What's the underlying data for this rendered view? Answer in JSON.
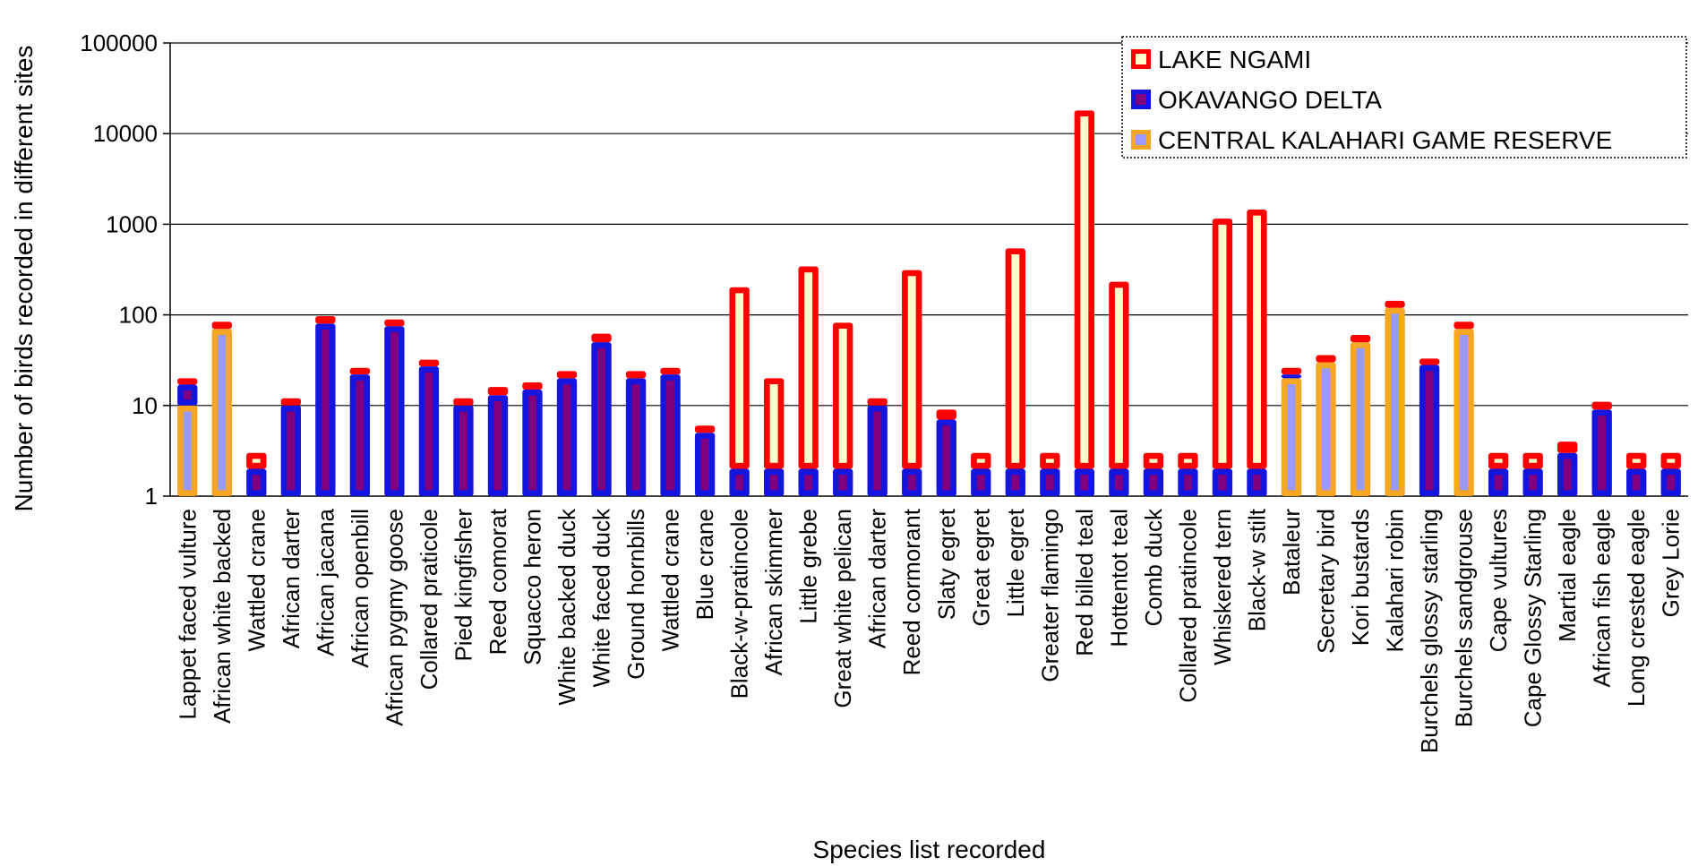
{
  "chart_data": {
    "type": "bar",
    "stacked": true,
    "log_scale": true,
    "ylim": [
      1,
      100000
    ],
    "y_ticks": [
      "1",
      "10",
      "100",
      "1000",
      "10000",
      "100000"
    ],
    "ylabel": "Number of birds recorded in different sites",
    "xlabel": "Species list recorded",
    "grid": true,
    "legend_position": "top-right",
    "categories": [
      "Lappet faced vulture",
      "African white backed",
      "Wattled crane",
      "African darter",
      "African jacana",
      "African openbill",
      "African pygmy goose",
      "Collared praticole",
      "Pied kingfisher",
      "Reed comorat",
      "Squacco heron",
      "White backed duck",
      "White faced duck",
      "Ground hornbills",
      "Wattled crane",
      "Blue crane",
      "Black-w-pratincole",
      "African skimmer",
      "Little grebe",
      "Great white pelican",
      "African darter",
      "Reed cormorant",
      "Slaty egret",
      "Great egret",
      "Little egret",
      "Greater flamingo",
      "Red billed teal",
      "Hottentot teal",
      "Comb duck",
      "Collared pratincole",
      "Whiskered tern",
      "Black-w stilt",
      "Bataleur",
      "Secretary bird",
      "Kori bustards",
      "Kalahari robin",
      "Burchels glossy starling",
      "Burchels sandgrouse",
      "Cape vultures",
      "Cape Glossy Starling",
      "Martial eagle",
      "African fish eagle",
      "Long crested eagle",
      "Grey Lorie"
    ],
    "series": [
      {
        "name": "CENTRAL KALAHARI GAME RESERVE",
        "color": "#f5a623",
        "values": [
          10,
          70,
          0,
          0,
          0,
          0,
          0,
          0,
          0,
          0,
          0,
          0,
          0,
          0,
          0,
          0,
          0,
          0,
          0,
          0,
          0,
          0,
          0,
          0,
          0,
          0,
          0,
          0,
          0,
          0,
          0,
          0,
          20,
          30,
          50,
          120,
          0,
          70,
          0,
          0,
          0,
          0,
          0,
          0
        ]
      },
      {
        "name": "OKAVANGO DELTA",
        "color": "#1515e0",
        "values": [
          7,
          0,
          2,
          10,
          80,
          22,
          75,
          27,
          10,
          13,
          15,
          20,
          50,
          20,
          22,
          5,
          2,
          2,
          2,
          2,
          10,
          2,
          7,
          2,
          2,
          2,
          2,
          2,
          2,
          2,
          2,
          2,
          2,
          0,
          0,
          0,
          28,
          0,
          2,
          2,
          3,
          9,
          2,
          2
        ]
      },
      {
        "name": "LAKE NGAMI",
        "color": "#ff0000",
        "values": [
          3,
          14,
          1,
          2,
          17,
          4,
          14,
          5,
          2,
          3,
          3,
          4,
          12,
          4,
          4,
          1,
          200,
          18,
          340,
          80,
          2,
          310,
          2,
          1,
          540,
          1,
          18000,
          230,
          1,
          1,
          1150,
          1450,
          4,
          6,
          10,
          23,
          5,
          14,
          1,
          1,
          1,
          2,
          1,
          1
        ]
      }
    ]
  }
}
